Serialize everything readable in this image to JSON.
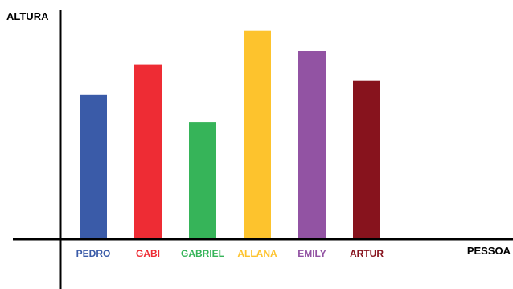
{
  "chart_data": {
    "type": "bar",
    "title": "",
    "xlabel": "PESSOA",
    "ylabel": "ALTURA",
    "ylim": [
      0,
      100
    ],
    "grid": false,
    "categories": [
      "PEDRO",
      "GABI",
      "GABRIEL",
      "ALLANA",
      "EMILY",
      "ARTUR"
    ],
    "values": [
      63,
      76,
      51,
      91,
      82,
      69
    ],
    "colors": [
      "#3a5ba8",
      "#ee2c34",
      "#36b459",
      "#fdc32d",
      "#9253a3",
      "#87131d"
    ]
  }
}
